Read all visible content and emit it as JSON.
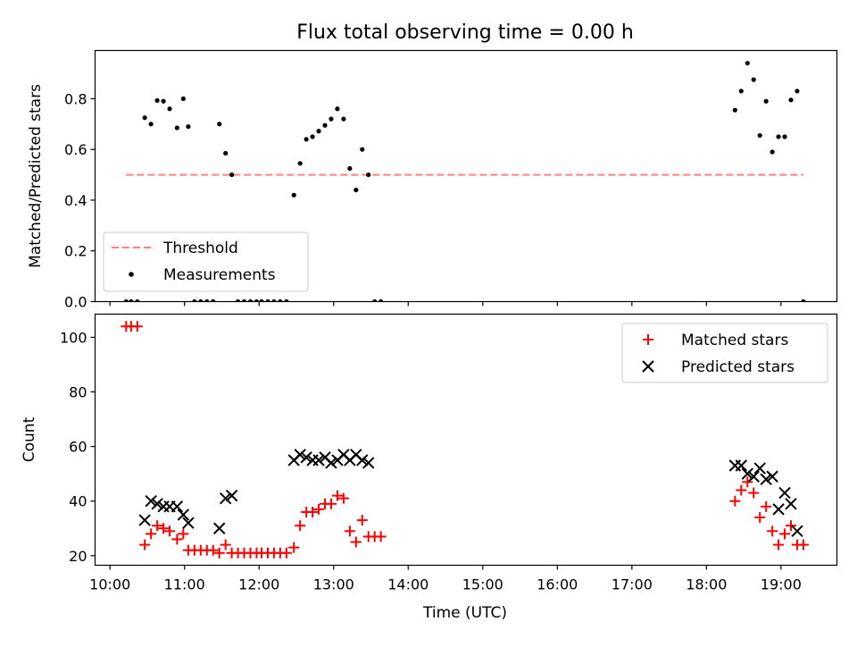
{
  "chart_data": [
    {
      "type": "scatter",
      "title": "Flux total observing time = 0.00 h",
      "xlabel": "",
      "ylabel": "Matched/Predicted stars",
      "xlim": [
        "09:48",
        "19:45"
      ],
      "ylim": [
        0,
        0.99
      ],
      "yticks": [
        "0.0",
        "0.2",
        "0.4",
        "0.6",
        "0.8"
      ],
      "grid": false,
      "legend": {
        "placement": "lower-left",
        "entries": [
          "Threshold",
          "Measurements"
        ]
      },
      "threshold": {
        "name": "Threshold",
        "value": 0.5,
        "x_start": "10:13",
        "x_end": "19:18",
        "color": "#ff8080"
      },
      "series": [
        {
          "name": "Measurements",
          "color": "#000000",
          "points": [
            [
              "10:13",
              0.0
            ],
            [
              "10:17",
              0.0
            ],
            [
              "10:22",
              0.0
            ],
            [
              "10:28",
              0.725
            ],
            [
              "10:33",
              0.7
            ],
            [
              "10:38",
              0.793
            ],
            [
              "10:43",
              0.79
            ],
            [
              "10:48",
              0.76
            ],
            [
              "10:54",
              0.685
            ],
            [
              "10:59",
              0.8
            ],
            [
              "11:03",
              0.69
            ],
            [
              "11:08",
              0.0
            ],
            [
              "11:13",
              0.0
            ],
            [
              "11:18",
              0.0
            ],
            [
              "11:23",
              0.0
            ],
            [
              "11:28",
              0.7
            ],
            [
              "11:33",
              0.585
            ],
            [
              "11:38",
              0.5
            ],
            [
              "11:43",
              0.0
            ],
            [
              "11:48",
              0.0
            ],
            [
              "11:53",
              0.0
            ],
            [
              "11:58",
              0.0
            ],
            [
              "12:02",
              0.0
            ],
            [
              "12:07",
              0.0
            ],
            [
              "12:12",
              0.0
            ],
            [
              "12:17",
              0.0
            ],
            [
              "12:22",
              0.0
            ],
            [
              "12:28",
              0.42
            ],
            [
              "12:33",
              0.545
            ],
            [
              "12:38",
              0.64
            ],
            [
              "12:43",
              0.65
            ],
            [
              "12:48",
              0.672
            ],
            [
              "12:53",
              0.695
            ],
            [
              "12:58",
              0.72
            ],
            [
              "13:03",
              0.76
            ],
            [
              "13:08",
              0.72
            ],
            [
              "13:13",
              0.525
            ],
            [
              "13:18",
              0.44
            ],
            [
              "13:23",
              0.6
            ],
            [
              "13:28",
              0.5
            ],
            [
              "13:33",
              0.0
            ],
            [
              "13:38",
              0.0
            ],
            [
              "18:23",
              0.755
            ],
            [
              "18:28",
              0.83
            ],
            [
              "18:33",
              0.94
            ],
            [
              "18:38",
              0.875
            ],
            [
              "18:43",
              0.655
            ],
            [
              "18:48",
              0.79
            ],
            [
              "18:53",
              0.59
            ],
            [
              "18:58",
              0.65
            ],
            [
              "19:03",
              0.65
            ],
            [
              "19:08",
              0.795
            ],
            [
              "19:13",
              0.83
            ],
            [
              "19:18",
              0.0
            ]
          ]
        }
      ]
    },
    {
      "type": "scatter",
      "title": "",
      "xlabel": "Time (UTC)",
      "ylabel": "Count",
      "xlim": [
        "09:48",
        "19:45"
      ],
      "ylim": [
        16.5,
        108.5
      ],
      "yticks": [
        "20",
        "40",
        "60",
        "80",
        "100"
      ],
      "xticks": [
        "10:00",
        "11:00",
        "12:00",
        "13:00",
        "14:00",
        "15:00",
        "16:00",
        "17:00",
        "18:00",
        "19:00"
      ],
      "grid": false,
      "legend": {
        "placement": "top-right",
        "entries": [
          "Matched stars",
          "Predicted stars"
        ]
      },
      "series": [
        {
          "name": "Matched stars",
          "marker": "plus",
          "color": "#ff0000",
          "points": [
            [
              "10:13",
              104
            ],
            [
              "10:17",
              104
            ],
            [
              "10:22",
              104
            ],
            [
              "10:28",
              24
            ],
            [
              "10:33",
              28
            ],
            [
              "10:38",
              31
            ],
            [
              "10:43",
              30
            ],
            [
              "10:48",
              29
            ],
            [
              "10:54",
              26
            ],
            [
              "10:59",
              28
            ],
            [
              "11:03",
              22
            ],
            [
              "11:08",
              22
            ],
            [
              "11:13",
              22
            ],
            [
              "11:18",
              22
            ],
            [
              "11:23",
              22
            ],
            [
              "11:28",
              21
            ],
            [
              "11:33",
              24
            ],
            [
              "11:38",
              21
            ],
            [
              "11:43",
              21
            ],
            [
              "11:48",
              21
            ],
            [
              "11:53",
              21
            ],
            [
              "11:58",
              21
            ],
            [
              "12:02",
              21
            ],
            [
              "12:07",
              21
            ],
            [
              "12:12",
              21
            ],
            [
              "12:17",
              21
            ],
            [
              "12:22",
              21
            ],
            [
              "12:28",
              23
            ],
            [
              "12:33",
              31
            ],
            [
              "12:38",
              36
            ],
            [
              "12:43",
              36
            ],
            [
              "12:48",
              37
            ],
            [
              "12:53",
              39
            ],
            [
              "12:58",
              39
            ],
            [
              "13:03",
              42
            ],
            [
              "13:08",
              41
            ],
            [
              "13:13",
              29
            ],
            [
              "13:18",
              25
            ],
            [
              "13:23",
              33
            ],
            [
              "13:28",
              27
            ],
            [
              "13:33",
              27
            ],
            [
              "13:38",
              27
            ],
            [
              "18:23",
              40
            ],
            [
              "18:28",
              44
            ],
            [
              "18:33",
              47
            ],
            [
              "18:38",
              43
            ],
            [
              "18:43",
              34
            ],
            [
              "18:48",
              38
            ],
            [
              "18:53",
              29
            ],
            [
              "18:58",
              24
            ],
            [
              "19:03",
              28
            ],
            [
              "19:08",
              31
            ],
            [
              "19:13",
              24
            ],
            [
              "19:18",
              24
            ]
          ]
        },
        {
          "name": "Predicted stars",
          "marker": "x",
          "color": "#000000",
          "points": [
            [
              "10:28",
              33
            ],
            [
              "10:33",
              40
            ],
            [
              "10:38",
              39
            ],
            [
              "10:43",
              38
            ],
            [
              "10:48",
              38
            ],
            [
              "10:54",
              38
            ],
            [
              "10:59",
              35
            ],
            [
              "11:03",
              32
            ],
            [
              "11:28",
              30
            ],
            [
              "11:33",
              41
            ],
            [
              "11:38",
              42
            ],
            [
              "12:28",
              55
            ],
            [
              "12:33",
              57
            ],
            [
              "12:38",
              56
            ],
            [
              "12:43",
              55
            ],
            [
              "12:48",
              55
            ],
            [
              "12:53",
              56
            ],
            [
              "12:58",
              54
            ],
            [
              "13:03",
              55
            ],
            [
              "13:08",
              57
            ],
            [
              "13:13",
              55
            ],
            [
              "13:18",
              57
            ],
            [
              "13:23",
              55
            ],
            [
              "13:28",
              54
            ],
            [
              "18:23",
              53
            ],
            [
              "18:28",
              53
            ],
            [
              "18:33",
              50
            ],
            [
              "18:38",
              49
            ],
            [
              "18:43",
              52
            ],
            [
              "18:48",
              48
            ],
            [
              "18:53",
              49
            ],
            [
              "18:58",
              37
            ],
            [
              "19:03",
              43
            ],
            [
              "19:08",
              39
            ],
            [
              "19:13",
              29
            ]
          ]
        }
      ]
    }
  ]
}
